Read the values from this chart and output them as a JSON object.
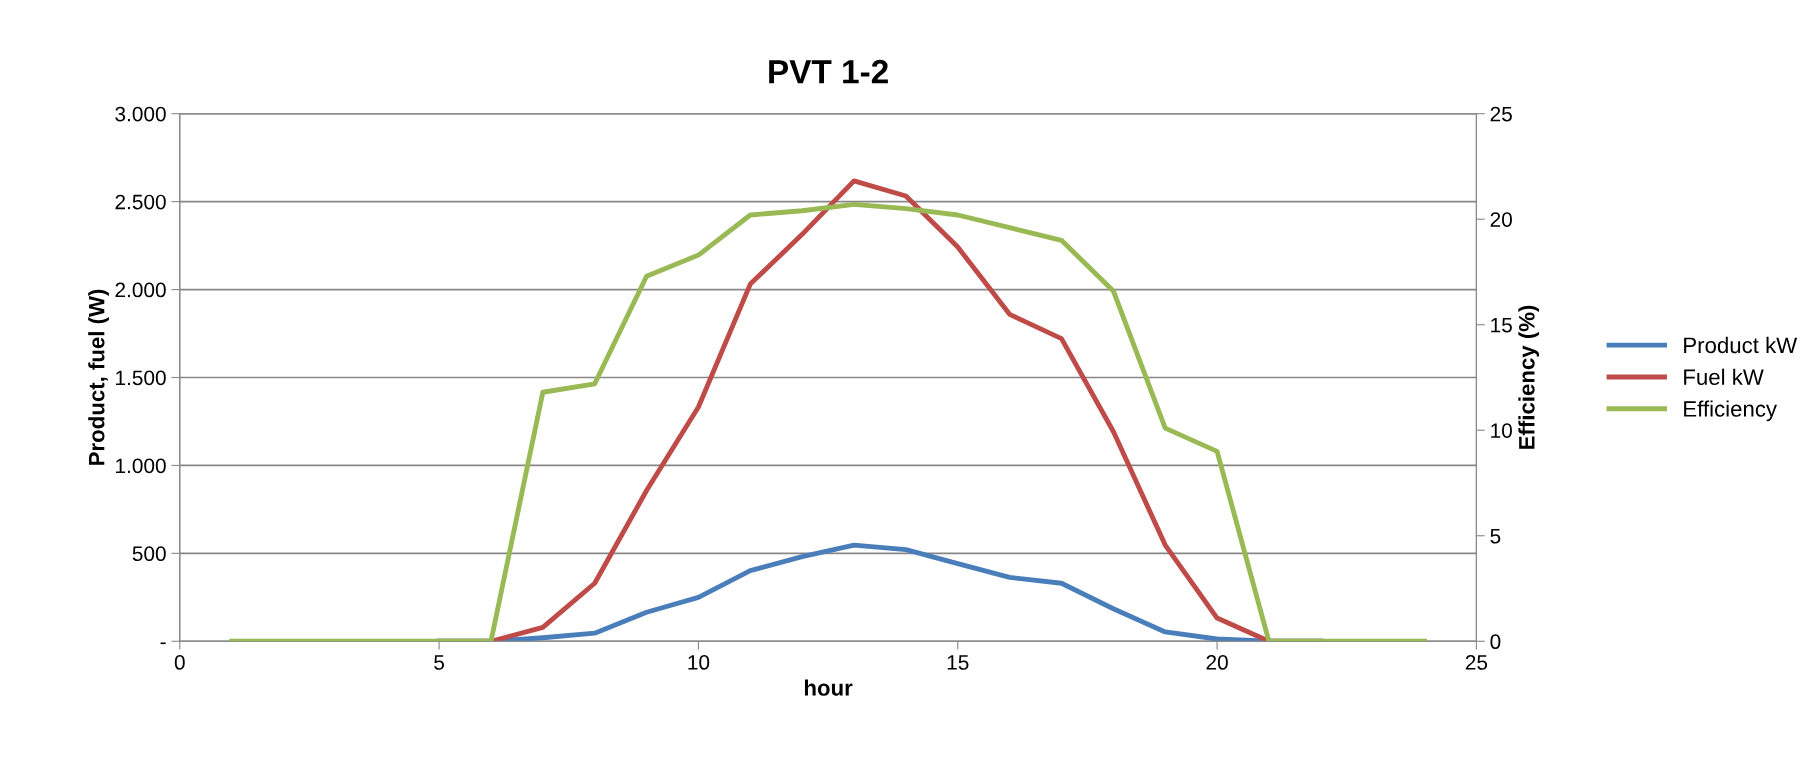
{
  "chart_data": {
    "type": "line",
    "title": "PVT 1-2",
    "xlabel": "hour",
    "ylabel": "Product, fuel (W)",
    "y2label": "Efficiency (%)",
    "x": [
      1,
      2,
      3,
      4,
      5,
      6,
      7,
      8,
      9,
      10,
      11,
      12,
      13,
      14,
      15,
      16,
      17,
      18,
      19,
      20,
      21,
      22,
      23,
      24
    ],
    "series": [
      {
        "name": "Product kW",
        "color": "#4a7ebb",
        "values": [
          null,
          null,
          null,
          null,
          0,
          0,
          20,
          46,
          165,
          250,
          402,
          481,
          547,
          521,
          442,
          363,
          330,
          185,
          53,
          13,
          0,
          0,
          null,
          null
        ]
      },
      {
        "name": "Fuel kW",
        "color": "#be4b48",
        "values": [
          null,
          null,
          null,
          null,
          0,
          0,
          79,
          330,
          857,
          1332,
          2031,
          2314,
          2618,
          2532,
          2242,
          1859,
          1721,
          1193,
          547,
          132,
          0,
          0,
          null,
          null
        ]
      },
      {
        "name": "Efficiency",
        "color": "#98b954",
        "axis": "y2",
        "values": [
          0,
          0,
          0,
          0,
          0,
          0,
          11.8,
          12.2,
          17.3,
          18.3,
          20.2,
          20.4,
          20.7,
          20.5,
          20.2,
          19.6,
          19.0,
          16.6,
          10.1,
          9.0,
          0,
          0,
          0,
          0
        ]
      }
    ],
    "xlim": [
      0,
      25
    ],
    "xticks": [
      0,
      5,
      10,
      15,
      20,
      25
    ],
    "ylim": [
      0,
      3000
    ],
    "yticks": [
      {
        "value": 0,
        "label": "-"
      },
      500,
      {
        "value": 1000,
        "label": "1.000"
      },
      {
        "value": 1500,
        "label": "1.500"
      },
      {
        "value": 2000,
        "label": "2.000"
      },
      {
        "value": 2500,
        "label": "2.500"
      },
      {
        "value": 3000,
        "label": "3.000"
      }
    ],
    "y2lim": [
      0,
      25
    ],
    "y2ticks": [
      0,
      5,
      10,
      15,
      20,
      25
    ],
    "grid": "y",
    "legend": "right",
    "marker": "none",
    "line_style": "solid"
  }
}
